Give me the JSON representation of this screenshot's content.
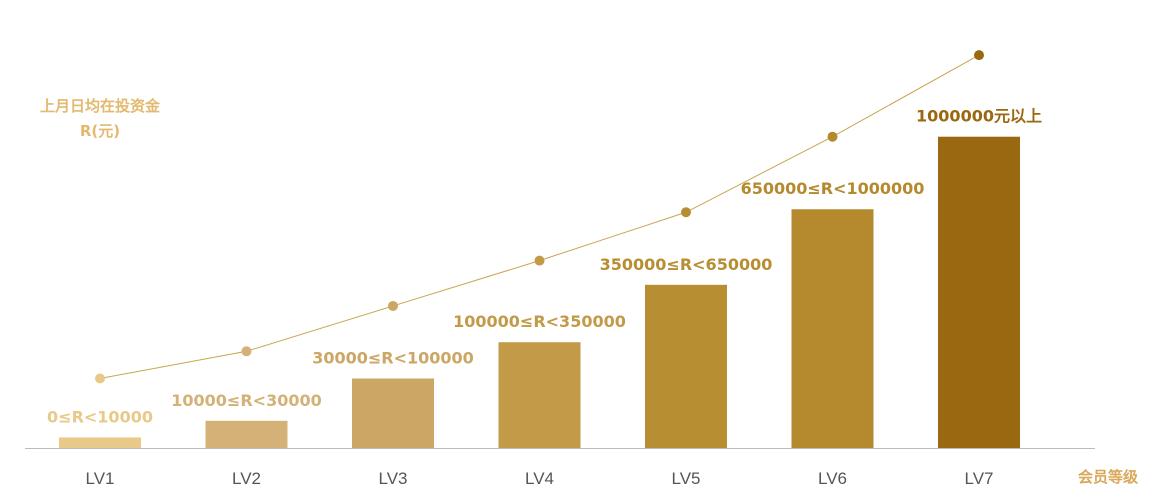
{
  "chart_data": {
    "type": "bar",
    "ylabel_line1": "上月日均在投资金",
    "ylabel_line2": "R(元)",
    "xlabel": "会员等级",
    "categories": [
      "LV1",
      "LV2",
      "LV3",
      "LV4",
      "LV5",
      "LV6",
      "LV7"
    ],
    "range_labels": [
      "0≤R<10000",
      "10000≤R<30000",
      "30000≤R<100000",
      "100000≤R<350000",
      "350000≤R<650000",
      "650000≤R<1000000",
      "1000000元以上"
    ],
    "values": [
      0.35,
      0.9,
      2.3,
      3.5,
      5.4,
      7.9,
      10.3
    ],
    "trend_values": [
      2.3,
      3.2,
      4.7,
      6.2,
      7.8,
      10.3,
      13.0
    ],
    "ylim": [
      0,
      13.5
    ],
    "bar_colors": [
      "#E9C98A",
      "#D4B177",
      "#CBA664",
      "#C29A48",
      "#B88E32",
      "#B58A2E",
      "#9A6810"
    ],
    "label_colors": [
      "#E9C98A",
      "#D4B177",
      "#CBA664",
      "#C29A48",
      "#B88E32",
      "#B58A2E",
      "#9A6810"
    ],
    "ylabel_color": "#E3B96F",
    "xlabel_color": "#D9A85A",
    "line_color": "#C9A54E",
    "axis_color": "#BBBBBB"
  }
}
